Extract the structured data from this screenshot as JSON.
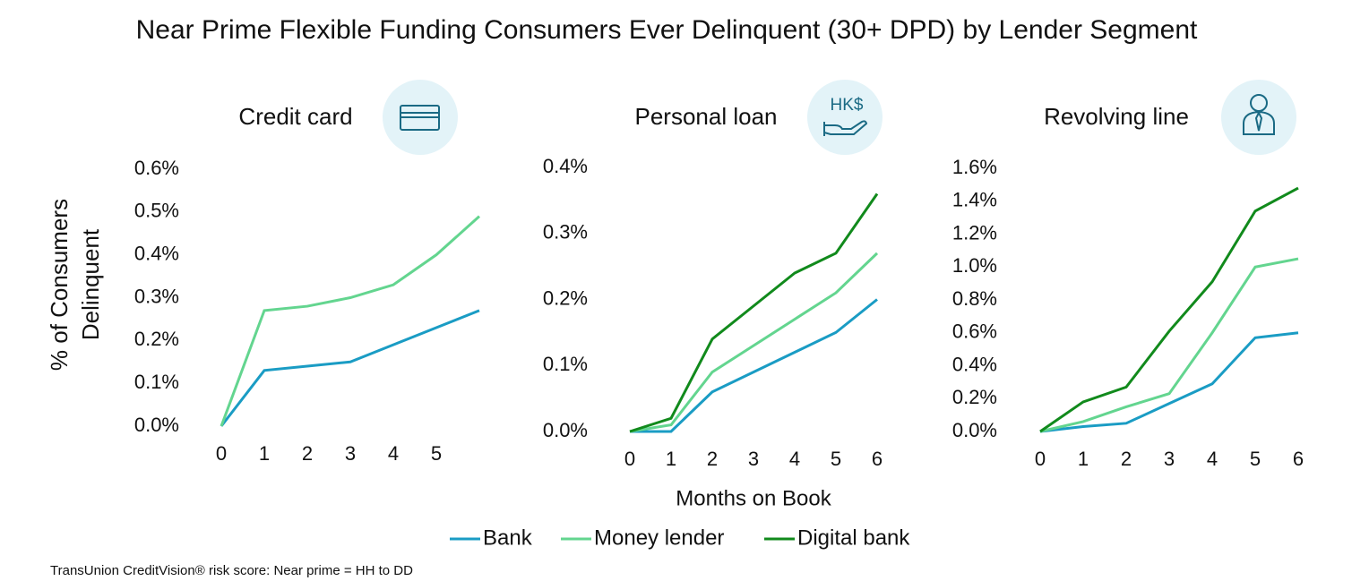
{
  "title": "Near Prime Flexible Funding Consumers Ever Delinquent (30+ DPD) by Lender Segment",
  "footnote": "TransUnion CreditVision® risk score: Near prime = HH to DD",
  "chart_data": [
    {
      "type": "line",
      "title": "Credit card",
      "y_label": [
        "% of Consumers",
        "Delinquent"
      ],
      "x": [
        0,
        1,
        2,
        3,
        4,
        5,
        6
      ],
      "xlim": [
        0,
        6
      ],
      "xticks": [
        0,
        1,
        2,
        3,
        4,
        5
      ],
      "ylim": [
        0,
        0.6
      ],
      "yticks": [
        {
          "value": 0,
          "label": "0.0%"
        },
        {
          "value": 0.1,
          "label": "0.1%"
        },
        {
          "value": 0.2,
          "label": "0.2%"
        },
        {
          "value": 0.3,
          "label": "0.3%"
        },
        {
          "value": 0.4,
          "label": "0.4%"
        },
        {
          "value": 0.5,
          "label": "0.5%"
        },
        {
          "value": 0.6,
          "label": "0.6%"
        }
      ],
      "series": [
        {
          "name": "Bank",
          "color": "#1a9cc4",
          "values": [
            0,
            0.13,
            0.14,
            0.15,
            0.19,
            0.23,
            0.27
          ]
        },
        {
          "name": "Money lender",
          "color": "#63d58f",
          "values": [
            0,
            0.27,
            0.28,
            0.3,
            0.33,
            0.4,
            0.49
          ]
        }
      ]
    },
    {
      "type": "line",
      "title": "Personal loan",
      "icon_label": "HK$",
      "x_label": "Months on Book",
      "x": [
        0,
        1,
        2,
        3,
        4,
        5,
        6
      ],
      "xlim": [
        0,
        6
      ],
      "xticks": [
        0,
        1,
        2,
        3,
        4,
        5,
        6
      ],
      "ylim": [
        0,
        0.4
      ],
      "yticks": [
        {
          "value": 0,
          "label": "0.0%"
        },
        {
          "value": 0.1,
          "label": "0.1%"
        },
        {
          "value": 0.2,
          "label": "0.2%"
        },
        {
          "value": 0.3,
          "label": "0.3%"
        },
        {
          "value": 0.4,
          "label": "0.4%"
        }
      ],
      "series": [
        {
          "name": "Bank",
          "color": "#1a9cc4",
          "values": [
            0,
            0,
            0.06,
            0.09,
            0.12,
            0.15,
            0.2
          ]
        },
        {
          "name": "Money lender",
          "color": "#63d58f",
          "values": [
            0,
            0.01,
            0.09,
            0.13,
            0.17,
            0.21,
            0.27
          ]
        },
        {
          "name": "Digital bank",
          "color": "#118a1c",
          "values": [
            0,
            0.02,
            0.14,
            0.19,
            0.24,
            0.27,
            0.36
          ]
        }
      ]
    },
    {
      "type": "line",
      "title": "Revolving line",
      "x": [
        0,
        1,
        2,
        3,
        4,
        5,
        6
      ],
      "xlim": [
        0,
        6
      ],
      "xticks": [
        0,
        1,
        2,
        3,
        4,
        5,
        6
      ],
      "ylim": [
        0,
        1.6
      ],
      "yticks": [
        {
          "value": 0,
          "label": "0.0%"
        },
        {
          "value": 0.2,
          "label": "0.2%"
        },
        {
          "value": 0.4,
          "label": "0.4%"
        },
        {
          "value": 0.6,
          "label": "0.6%"
        },
        {
          "value": 0.8,
          "label": "0.8%"
        },
        {
          "value": 1.0,
          "label": "1.0%"
        },
        {
          "value": 1.2,
          "label": "1.2%"
        },
        {
          "value": 1.4,
          "label": "1.4%"
        },
        {
          "value": 1.6,
          "label": "1.6%"
        }
      ],
      "series": [
        {
          "name": "Bank",
          "color": "#1a9cc4",
          "values": [
            0,
            0.03,
            0.05,
            0.17,
            0.29,
            0.57,
            0.6
          ]
        },
        {
          "name": "Money lender",
          "color": "#63d58f",
          "values": [
            0,
            0.06,
            0.15,
            0.23,
            0.6,
            1.0,
            1.05
          ]
        },
        {
          "name": "Digital bank",
          "color": "#118a1c",
          "values": [
            0,
            0.18,
            0.27,
            0.61,
            0.91,
            1.34,
            1.48
          ]
        }
      ]
    }
  ]
}
